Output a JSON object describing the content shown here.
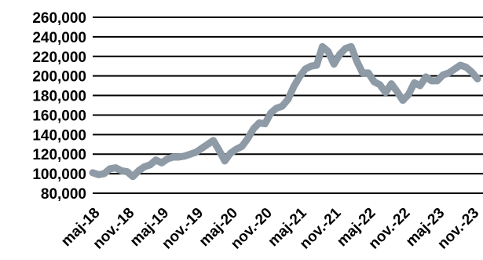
{
  "colors": {
    "line": "#8e9ba6",
    "grid": "#000000",
    "text": "#000000",
    "background": "#ffffff"
  },
  "chart_data": {
    "type": "line",
    "title": "",
    "xlabel": "",
    "ylabel": "",
    "ylim": [
      80000,
      260000
    ],
    "grid": true,
    "legend": "none",
    "y_ticks": [
      {
        "value": 80000,
        "label": "80,000"
      },
      {
        "value": 100000,
        "label": "100,000"
      },
      {
        "value": 120000,
        "label": "120,000"
      },
      {
        "value": 140000,
        "label": "140,000"
      },
      {
        "value": 160000,
        "label": "160,000"
      },
      {
        "value": 180000,
        "label": "180,000"
      },
      {
        "value": 200000,
        "label": "200,000"
      },
      {
        "value": 220000,
        "label": "220,000"
      },
      {
        "value": 240000,
        "label": "240,000"
      },
      {
        "value": 260000,
        "label": "260,000"
      }
    ],
    "x_tick_labels": [
      "maj-18",
      "nov.-18",
      "maj-19",
      "nov.-19",
      "maj-20",
      "nov.-20",
      "maj-21",
      "nov.-21",
      "maj-22",
      "nov.-22",
      "maj-23",
      "nov.-23"
    ],
    "series": [
      {
        "x": [
          "2018-05",
          "2018-06",
          "2018-07",
          "2018-08",
          "2018-09",
          "2018-10",
          "2018-11",
          "2018-12",
          "2019-01",
          "2019-02",
          "2019-03",
          "2019-04",
          "2019-05",
          "2019-06",
          "2019-07",
          "2019-08",
          "2019-09",
          "2019-10",
          "2019-11",
          "2019-12",
          "2020-01",
          "2020-02",
          "2020-03",
          "2020-04",
          "2020-05",
          "2020-06",
          "2020-07",
          "2020-08",
          "2020-09",
          "2020-10",
          "2020-11",
          "2020-12",
          "2021-01",
          "2021-02",
          "2021-03",
          "2021-04",
          "2021-05",
          "2021-06",
          "2021-07",
          "2021-08",
          "2021-09",
          "2021-10",
          "2021-11",
          "2021-12",
          "2022-01",
          "2022-02",
          "2022-03",
          "2022-04",
          "2022-05",
          "2022-06",
          "2022-07",
          "2022-08",
          "2022-09",
          "2022-10",
          "2022-11",
          "2022-12",
          "2023-01",
          "2023-02",
          "2023-03",
          "2023-04",
          "2023-05",
          "2023-06",
          "2023-07",
          "2023-08",
          "2023-09",
          "2023-10",
          "2023-11",
          "2023-12"
        ],
        "values": [
          101000,
          99000,
          100000,
          105000,
          106000,
          103000,
          102000,
          97000,
          103000,
          107000,
          109000,
          114000,
          111000,
          115000,
          117000,
          117000,
          118000,
          120000,
          122000,
          126000,
          130000,
          134000,
          124000,
          113000,
          121000,
          125000,
          128000,
          136000,
          146000,
          152000,
          151000,
          162000,
          167000,
          169000,
          176000,
          189000,
          199000,
          207000,
          210000,
          211000,
          230000,
          225000,
          212000,
          222000,
          228000,
          230000,
          215000,
          203000,
          203000,
          194000,
          191000,
          183000,
          192000,
          184000,
          175000,
          181000,
          193000,
          190000,
          199000,
          195000,
          195000,
          201000,
          203000,
          207000,
          211000,
          209000,
          204000,
          197000
        ]
      }
    ]
  }
}
